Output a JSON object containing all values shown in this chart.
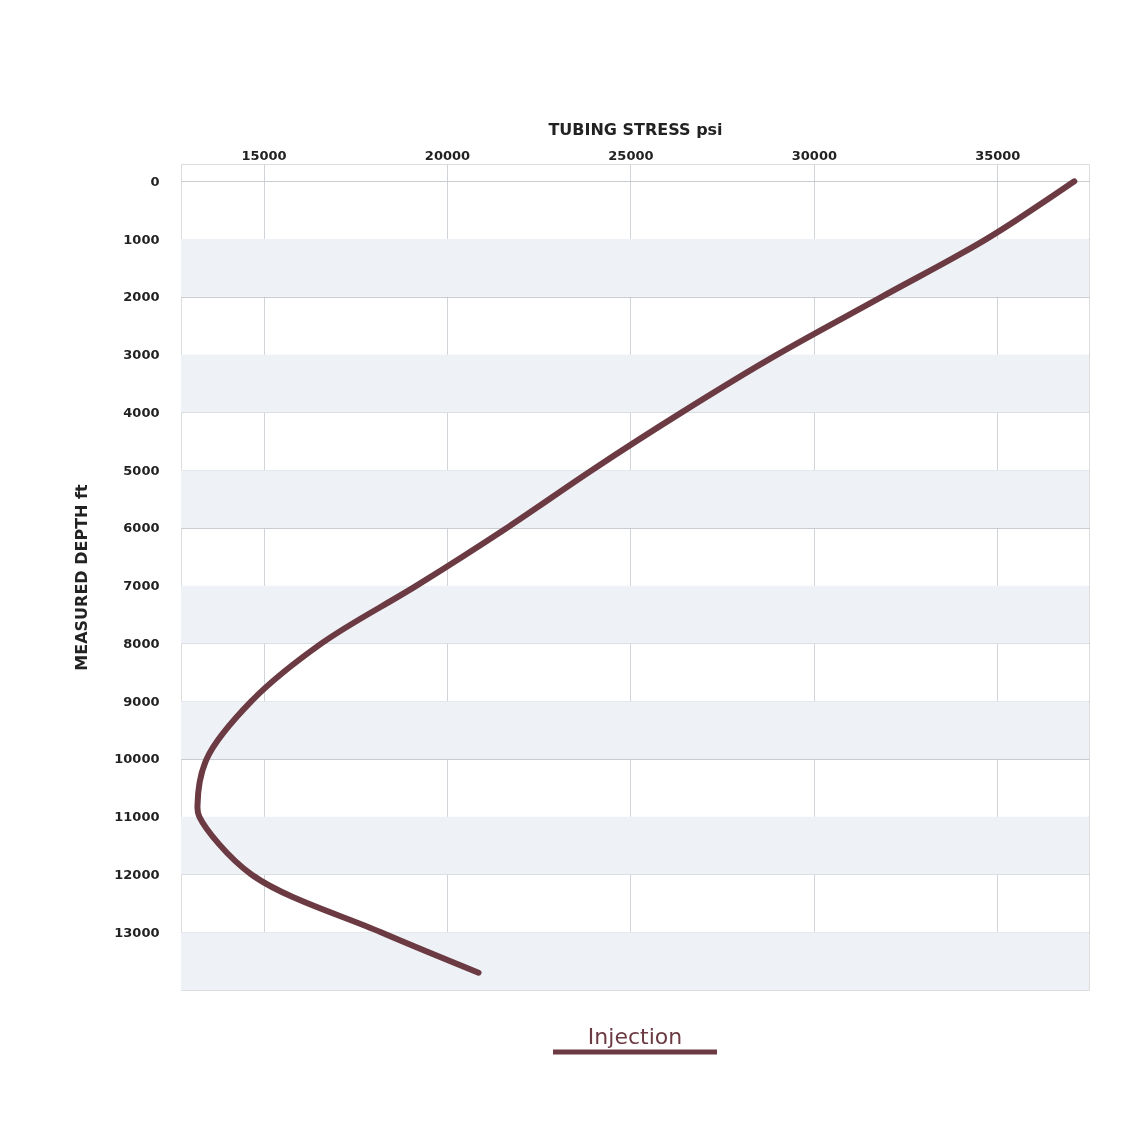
{
  "chart_data": {
    "type": "line",
    "xlabel": "TUBING STRESS psi",
    "ylabel": "MEASURED DEPTH ft",
    "x": [
      37100,
      34700,
      31850,
      29000,
      26400,
      23950,
      21630,
      19170,
      16580,
      14670,
      13450,
      13200,
      13250,
      14670,
      18200,
      20860
    ],
    "series": [
      {
        "name": "Injection",
        "color": "#6b3a42",
        "values": [
          0,
          1000,
          2000,
          3000,
          4000,
          5000,
          6000,
          7000,
          8000,
          9000,
          10000,
          10800,
          11000,
          12000,
          13000,
          13700
        ]
      }
    ],
    "xlim": [
      12750,
      37500
    ],
    "xticks": [
      15000,
      20000,
      25000,
      30000,
      35000
    ],
    "ylim": [
      14000,
      -300
    ],
    "yticks": [
      0,
      1000,
      2000,
      3000,
      4000,
      5000,
      6000,
      7000,
      8000,
      9000,
      10000,
      11000,
      12000,
      13000
    ],
    "bands": [
      {
        "axis": "y",
        "from": 1000,
        "to": 2000,
        "color": "#eef1f5"
      },
      {
        "axis": "y",
        "from": 3000,
        "to": 4000,
        "color": "#eef1f5"
      },
      {
        "axis": "y",
        "from": 5000,
        "to": 6000,
        "color": "#eef1f5"
      },
      {
        "axis": "y",
        "from": 7000,
        "to": 8000,
        "color": "#eef1f5"
      },
      {
        "axis": "y",
        "from": 9000,
        "to": 10000,
        "color": "#eef1f5"
      },
      {
        "axis": "y",
        "from": 11000,
        "to": 12000,
        "color": "#eef1f5"
      },
      {
        "axis": "y",
        "from": 13000,
        "to": 14000,
        "color": "#eef1f5"
      }
    ],
    "grid": true,
    "legend": "bottom",
    "marker": "none",
    "line_style": "solid"
  }
}
